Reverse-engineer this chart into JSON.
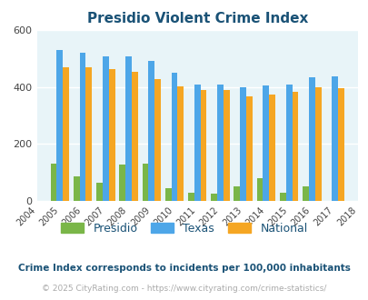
{
  "title": "Presidio Violent Crime Index",
  "plot_years": [
    2005,
    2006,
    2007,
    2008,
    2009,
    2010,
    2011,
    2012,
    2013,
    2014,
    2015,
    2016,
    2017
  ],
  "presidio": [
    130,
    85,
    65,
    128,
    130,
    45,
    28,
    25,
    52,
    80,
    28,
    52,
    0
  ],
  "texas": [
    530,
    520,
    508,
    508,
    493,
    450,
    408,
    408,
    400,
    405,
    410,
    435,
    438
  ],
  "national": [
    468,
    470,
    462,
    454,
    428,
    403,
    390,
    390,
    367,
    375,
    383,
    398,
    397
  ],
  "presidio_color": "#7ab648",
  "texas_color": "#4da6e8",
  "national_color": "#f5a623",
  "plot_bg": "#e8f4f8",
  "title_color": "#1a5276",
  "ylim": [
    0,
    600
  ],
  "yticks": [
    0,
    200,
    400,
    600
  ],
  "grid_color": "#ffffff",
  "subtitle": "Crime Index corresponds to incidents per 100,000 inhabitants",
  "copyright": "© 2025 CityRating.com - https://www.cityrating.com/crime-statistics/",
  "subtitle_color": "#1a5276",
  "copyright_color": "#aaaaaa",
  "legend_labels": [
    "Presidio",
    "Texas",
    "National"
  ],
  "xtick_years": [
    2004,
    2005,
    2006,
    2007,
    2008,
    2009,
    2010,
    2011,
    2012,
    2013,
    2014,
    2015,
    2016,
    2017,
    2018
  ]
}
